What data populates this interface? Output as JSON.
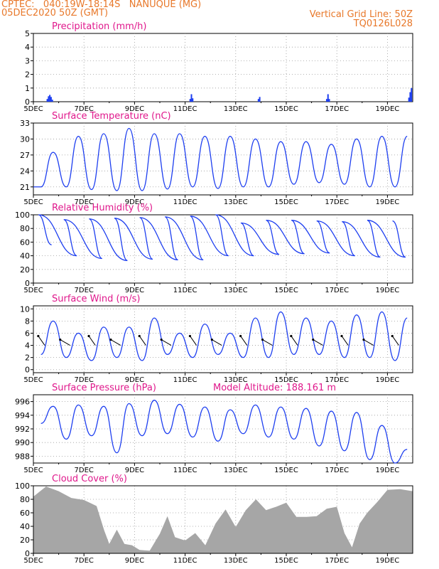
{
  "header": {
    "line1_left": "CPTEC:   040:19W-18:14S   NANUQUE (MG)",
    "line2_left": "05DEC2020 50Z (GMT)",
    "line1_right": "Vertical Grid Line: 50Z",
    "line2_right": "TQ0126L028"
  },
  "colors": {
    "line": "#1e3ff0",
    "bar": "#1e3ff0",
    "cloud": "#a6a6a6",
    "title": "#e0188c",
    "header": "#e8782a",
    "grid": "#9a9a9a"
  },
  "chart_data": [
    {
      "type": "bar",
      "title": "Precipitation (mm/h)",
      "ylim": [
        0,
        5
      ],
      "yticks": [
        "0",
        "1",
        "2",
        "3",
        "4",
        "5"
      ],
      "xticks": [
        "5DEC",
        "7DEC",
        "9DEC",
        "11DEC",
        "13DEC",
        "15DEC",
        "17DEC",
        "19DEC"
      ],
      "x_days": [
        0,
        15
      ],
      "bars": [
        {
          "day": 0.55,
          "value": 0.2
        },
        {
          "day": 0.6,
          "value": 0.4
        },
        {
          "day": 0.65,
          "value": 0.5
        },
        {
          "day": 0.7,
          "value": 0.35
        },
        {
          "day": 0.75,
          "value": 0.15
        },
        {
          "day": 6.2,
          "value": 0.2
        },
        {
          "day": 6.25,
          "value": 0.55
        },
        {
          "day": 6.3,
          "value": 0.25
        },
        {
          "day": 8.9,
          "value": 0.2
        },
        {
          "day": 8.95,
          "value": 0.35
        },
        {
          "day": 11.6,
          "value": 0.2
        },
        {
          "day": 11.65,
          "value": 0.55
        },
        {
          "day": 11.7,
          "value": 0.2
        },
        {
          "day": 14.85,
          "value": 0.3
        },
        {
          "day": 14.9,
          "value": 0.7
        },
        {
          "day": 14.95,
          "value": 1.0
        }
      ]
    },
    {
      "type": "line",
      "title": "Surface Temperature (nC)",
      "ylim": [
        19.5,
        33
      ],
      "yticks": [
        "21",
        "24",
        "27",
        "30",
        "33"
      ],
      "xticks": [
        "5DEC",
        "7DEC",
        "9DEC",
        "11DEC",
        "13DEC",
        "15DEC",
        "17DEC",
        "19DEC"
      ],
      "x_days": [
        0,
        15
      ],
      "maxima": [
        27.5,
        30.5,
        31,
        32,
        31,
        31,
        30.5,
        30.5,
        30,
        29.5,
        29.5,
        29,
        30,
        30.5,
        30.5
      ],
      "minima": [
        21,
        21,
        20.5,
        20.3,
        20.3,
        20.6,
        21,
        20.7,
        21,
        21,
        21.5,
        21.8,
        21.5,
        21,
        21
      ]
    },
    {
      "type": "line",
      "title": "Relative Humidity (%)",
      "ylim": [
        0,
        100
      ],
      "yticks": [
        "0",
        "20",
        "40",
        "60",
        "80",
        "100"
      ],
      "xticks": [
        "5DEC",
        "7DEC",
        "9DEC",
        "11DEC",
        "13DEC",
        "15DEC",
        "17DEC",
        "19DEC"
      ],
      "x_days": [
        0,
        15
      ],
      "maxima": [
        100,
        93,
        94,
        95,
        96,
        97,
        98,
        100,
        88,
        92,
        92,
        91,
        90,
        92,
        91
      ],
      "minima": [
        56,
        40,
        36,
        33,
        35,
        34,
        34,
        40,
        40,
        42,
        43,
        44,
        40,
        38,
        38
      ]
    },
    {
      "type": "line",
      "title": "Surface Wind (m/s)",
      "ylim": [
        -0.5,
        10.5
      ],
      "yticks": [
        "0",
        "2",
        "4",
        "6",
        "8",
        "10"
      ],
      "xticks": [
        "5DEC",
        "7DEC",
        "9DEC",
        "11DEC",
        "13DEC",
        "15DEC",
        "17DEC",
        "19DEC"
      ],
      "x_days": [
        0,
        15
      ],
      "maxima": [
        8,
        6,
        7,
        7,
        8.5,
        6,
        7.5,
        6,
        8.5,
        9.5,
        8.5,
        8,
        9,
        9.5,
        8.5
      ],
      "minima": [
        2.5,
        2,
        1.5,
        2,
        1.5,
        2.5,
        2,
        2.5,
        2,
        2,
        2.5,
        2.5,
        2,
        2,
        1.5
      ],
      "vectors_note": "wind direction arrows"
    },
    {
      "type": "line",
      "title": "Surface Pressure (hPa)",
      "annotation": "Model Altitude: 188.161 m",
      "ylim": [
        987,
        997
      ],
      "yticks": [
        "988",
        "990",
        "992",
        "994",
        "996"
      ],
      "xticks": [
        "5DEC",
        "7DEC",
        "9DEC",
        "11DEC",
        "13DEC",
        "15DEC",
        "17DEC",
        "19DEC"
      ],
      "x_days": [
        0,
        15
      ],
      "maxima": [
        995.3,
        995.5,
        995.3,
        995.7,
        996.2,
        995.6,
        995.2,
        994.8,
        995.5,
        995.2,
        995.0,
        994.6,
        994.4,
        992.5,
        989.0
      ],
      "minima": [
        992.8,
        990.5,
        991.0,
        988.5,
        991.0,
        991.3,
        990.8,
        990.2,
        991.3,
        990.8,
        990.5,
        989.5,
        988.8,
        987.5,
        987.0
      ]
    },
    {
      "type": "area",
      "title": "Cloud Cover (%)",
      "ylim": [
        0,
        100
      ],
      "yticks": [
        "0",
        "20",
        "40",
        "60",
        "80",
        "100"
      ],
      "xticks": [
        "5DEC",
        "7DEC",
        "9DEC",
        "11DEC",
        "13DEC",
        "15DEC",
        "17DEC",
        "19DEC"
      ],
      "x_days": [
        0,
        15
      ],
      "profile": [
        {
          "day": 0.0,
          "value": 90
        },
        {
          "day": 0.5,
          "value": 95
        },
        {
          "day": 1.0,
          "value": 92
        },
        {
          "day": 1.5,
          "value": 88
        },
        {
          "day": 2.0,
          "value": 75
        },
        {
          "day": 2.5,
          "value": 70
        },
        {
          "day": 2.8,
          "value": 40
        },
        {
          "day": 3.0,
          "value": 10
        },
        {
          "day": 3.3,
          "value": 35
        },
        {
          "day": 3.6,
          "value": 20
        },
        {
          "day": 3.9,
          "value": 8
        },
        {
          "day": 4.2,
          "value": 5
        },
        {
          "day": 4.6,
          "value": 10
        },
        {
          "day": 5.0,
          "value": 25
        },
        {
          "day": 5.3,
          "value": 55
        },
        {
          "day": 5.6,
          "value": 30
        },
        {
          "day": 6.0,
          "value": 15
        },
        {
          "day": 6.4,
          "value": 30
        },
        {
          "day": 6.8,
          "value": 18
        },
        {
          "day": 7.2,
          "value": 40
        },
        {
          "day": 7.6,
          "value": 65
        },
        {
          "day": 8.0,
          "value": 45
        },
        {
          "day": 8.4,
          "value": 60
        },
        {
          "day": 8.8,
          "value": 80
        },
        {
          "day": 9.2,
          "value": 70
        },
        {
          "day": 9.6,
          "value": 65
        },
        {
          "day": 10.0,
          "value": 75
        },
        {
          "day": 10.4,
          "value": 60
        },
        {
          "day": 10.8,
          "value": 50
        },
        {
          "day": 11.2,
          "value": 55
        },
        {
          "day": 11.6,
          "value": 72
        },
        {
          "day": 12.0,
          "value": 65
        },
        {
          "day": 12.3,
          "value": 30
        },
        {
          "day": 12.6,
          "value": 15
        },
        {
          "day": 12.9,
          "value": 40
        },
        {
          "day": 13.2,
          "value": 60
        },
        {
          "day": 13.6,
          "value": 82
        },
        {
          "day": 14.0,
          "value": 90
        },
        {
          "day": 14.5,
          "value": 95
        },
        {
          "day": 15.0,
          "value": 98
        }
      ]
    }
  ]
}
